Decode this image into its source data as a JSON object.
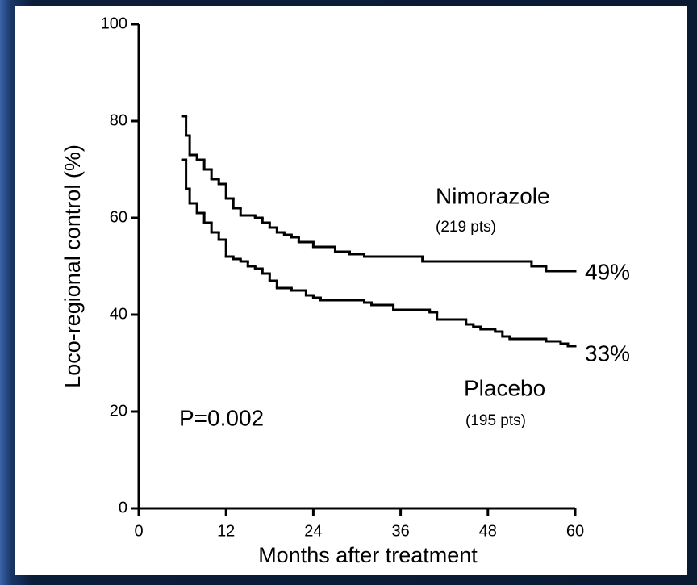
{
  "chart_data": {
    "type": "line",
    "step": true,
    "xlabel": "Months after treatment",
    "ylabel": "Loco-regional control (%)",
    "xlim": [
      0,
      60
    ],
    "xticks": [
      0,
      12,
      24,
      36,
      48,
      60
    ],
    "ylim": [
      0,
      100
    ],
    "yticks": [
      0,
      20,
      40,
      60,
      80,
      100
    ],
    "series": [
      {
        "name": "Nimorazole",
        "color": "#000000",
        "x": [
          6,
          6.5,
          7,
          8,
          9,
          10,
          11,
          12,
          13,
          14,
          16,
          17,
          18,
          19,
          20,
          21,
          22,
          24,
          27,
          29,
          31,
          39,
          54,
          56
        ],
        "values": [
          81,
          77,
          73,
          72,
          70,
          68,
          67,
          64,
          62,
          60.5,
          60,
          59,
          58,
          57,
          56.5,
          56,
          55,
          54,
          53,
          52.5,
          52,
          51,
          50,
          49
        ]
      },
      {
        "name": "Placebo",
        "color": "#000000",
        "x": [
          6,
          6.5,
          7,
          8,
          9,
          10,
          11,
          12,
          13,
          14,
          15,
          16,
          17,
          18,
          19,
          21,
          23,
          24,
          25,
          31,
          32,
          35,
          40,
          41,
          45,
          46,
          47,
          49,
          50,
          51,
          56,
          58,
          59
        ],
        "values": [
          72,
          66,
          63,
          61,
          59,
          57,
          55.5,
          52,
          51.5,
          51,
          50,
          49.5,
          48.5,
          47,
          45.5,
          45,
          44,
          43.5,
          43,
          42.5,
          42,
          41,
          40.5,
          39,
          38,
          37.5,
          37,
          36.5,
          35.5,
          35,
          34.5,
          34,
          33.5
        ]
      }
    ],
    "annotations": [
      "(219 pts)",
      "(195 pts)",
      "49%",
      "33%",
      "P=0.002"
    ]
  }
}
